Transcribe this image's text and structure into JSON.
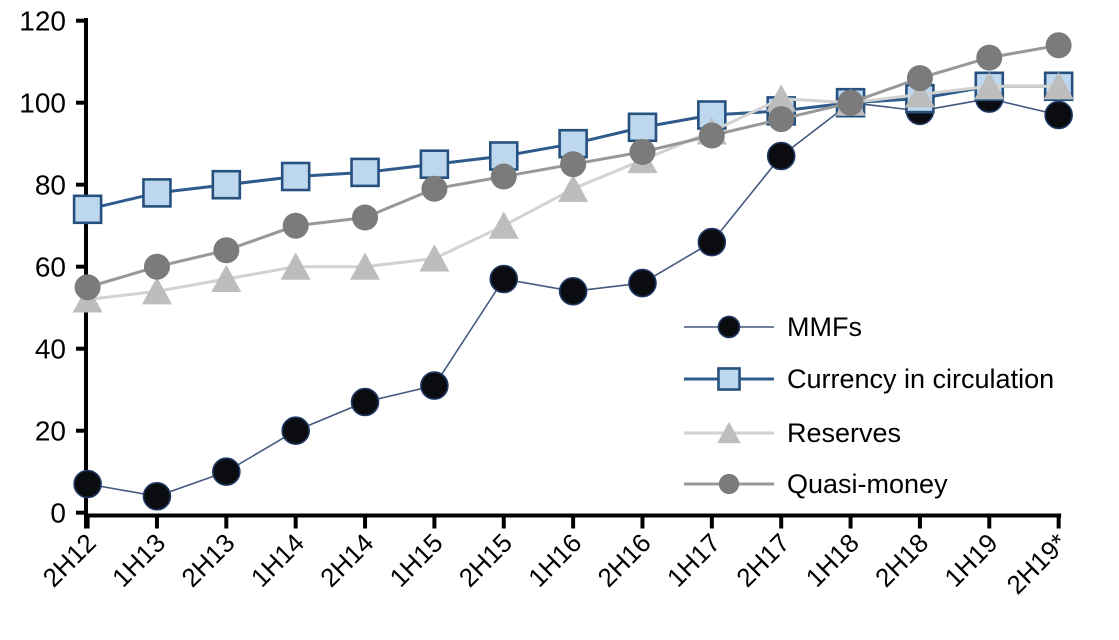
{
  "chart_data": {
    "type": "line",
    "title": "",
    "xlabel": "",
    "ylabel": "",
    "categories": [
      "2H12",
      "1H13",
      "2H13",
      "1H14",
      "2H14",
      "1H15",
      "2H15",
      "1H16",
      "2H16",
      "1H17",
      "2H17",
      "1H18",
      "2H18",
      "1H19",
      "2H19*"
    ],
    "series": [
      {
        "name": "MMFs",
        "marker": "circle",
        "marker_color": "#0a0c10",
        "marker_stroke": "#1F3864",
        "line_color": "#44597D",
        "line_width": 1.6,
        "marker_size": 13.5,
        "values": [
          7,
          4,
          10,
          20,
          27,
          31,
          57,
          54,
          56,
          66,
          87,
          100,
          98,
          101,
          97
        ]
      },
      {
        "name": "Currency in circulation",
        "marker": "square",
        "marker_color": "#BDD7EE",
        "marker_stroke": "#26517E",
        "line_color": "#2E5B8C",
        "line_width": 3,
        "marker_size": 13.5,
        "values": [
          74,
          78,
          80,
          82,
          83,
          85,
          87,
          90,
          94,
          97,
          98,
          100,
          101,
          104,
          104
        ]
      },
      {
        "name": "Reserves",
        "marker": "triangle",
        "marker_color": "#BDBDBD",
        "marker_stroke": "none",
        "line_color": "#D2D2D2",
        "line_width": 3,
        "marker_size": 15,
        "values": [
          52,
          54,
          57,
          60,
          60,
          62,
          70,
          79,
          86,
          93,
          101,
          100,
          102,
          104,
          104
        ]
      },
      {
        "name": "Quasi-money",
        "marker": "circle",
        "marker_color": "#7B7B7B",
        "marker_stroke": "none",
        "line_color": "#989898",
        "line_width": 3,
        "marker_size": 13,
        "values": [
          55,
          60,
          64,
          70,
          72,
          79,
          82,
          85,
          88,
          92,
          96,
          100,
          106,
          111,
          114
        ]
      }
    ],
    "ylim": [
      0,
      120
    ],
    "yticks": [
      0,
      20,
      40,
      60,
      80,
      100,
      120
    ],
    "grid": false,
    "legend_position": "inside-right",
    "axis_color": "#000000",
    "background": "#FFFFFF"
  }
}
